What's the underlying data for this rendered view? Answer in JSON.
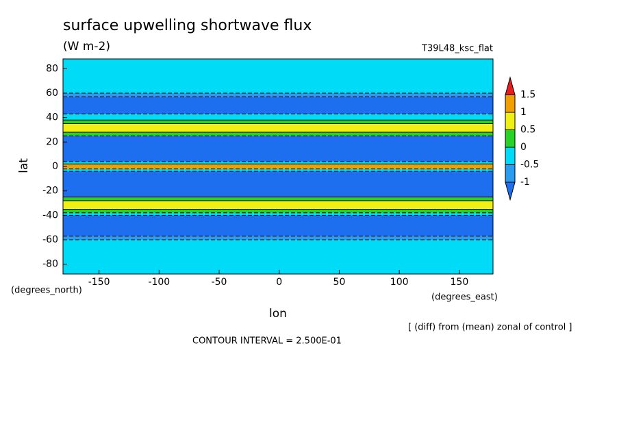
{
  "chart_data": {
    "type": "contour",
    "title": "surface upwelling shortwave flux",
    "units": "(W m-2)",
    "run_label": "T39L48_ksc_flat",
    "x_label": "lon",
    "y_label": "lat",
    "x_unit": "(degrees_east)",
    "y_unit": "(degrees_north)",
    "note": "[ (diff) from (mean) zonal of control ]",
    "interval_text": "CONTOUR INTERVAL = 2.500E-01",
    "xlim": [
      -180,
      178
    ],
    "ylim": [
      -88,
      88
    ],
    "xticks": [
      -150,
      -100,
      -50,
      0,
      50,
      100,
      150
    ],
    "yticks": [
      -80,
      -60,
      -40,
      -20,
      0,
      20,
      40,
      60,
      80
    ],
    "y_edges": [
      88,
      60,
      57,
      43,
      38,
      35,
      28,
      25,
      4,
      2,
      -2,
      -4,
      -25,
      -28,
      -35,
      -38,
      -40,
      -57,
      -60,
      -88
    ],
    "values": [
      -0.3,
      -0.7,
      -1.2,
      -0.3,
      0.2,
      0.7,
      0.2,
      -1.2,
      -0.3,
      1.2,
      -0.3,
      -1.2,
      0.2,
      0.7,
      0.2,
      -0.3,
      -1.2,
      -0.7,
      -0.3
    ],
    "levels": [
      -1,
      -0.5,
      0,
      0.5,
      1,
      1.5
    ],
    "colors": [
      "#1e6ef0",
      "#2a9cf0",
      "#00dcf8",
      "#28d228",
      "#f0f014",
      "#f0a000",
      "#e61e1e"
    ]
  }
}
